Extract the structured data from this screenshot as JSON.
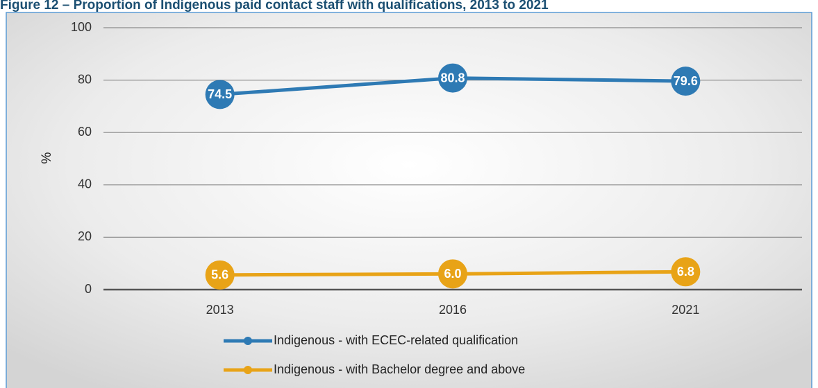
{
  "chart_data": {
    "type": "line",
    "title": "Figure 12 – Proportion of Indigenous paid contact staff with qualifications, 2013 to 2021",
    "ylabel": "%",
    "categories": [
      "2013",
      "2016",
      "2021"
    ],
    "series": [
      {
        "name": "Indigenous - with ECEC-related qualification",
        "color": "#2e7ab4",
        "values": [
          74.5,
          80.8,
          79.6
        ],
        "value_labels": [
          "74.5",
          "80.8",
          "79.6"
        ]
      },
      {
        "name": "Indigenous - with Bachelor degree and above",
        "color": "#e8a317",
        "values": [
          5.6,
          6.0,
          6.8
        ],
        "value_labels": [
          "5.6",
          "6.0",
          "6.8"
        ]
      }
    ],
    "ylim": [
      0,
      100
    ],
    "yticks": [
      0,
      20,
      40,
      60,
      80,
      100
    ],
    "grid": true,
    "legend": "bottom"
  }
}
